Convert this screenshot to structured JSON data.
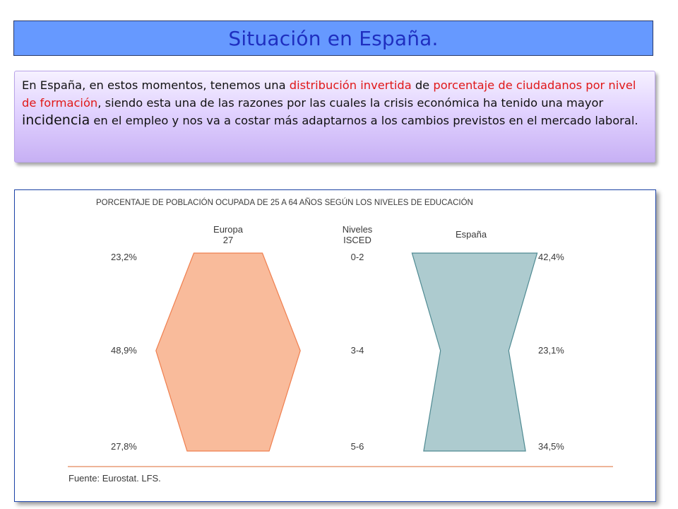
{
  "slide": {
    "title": "Situación en España.",
    "intro": {
      "t1": "En España, en estos momentos, tenemos una ",
      "t2": "distribución invertida",
      "t3": " de ",
      "t4": "porcentaje de ciudadanos por nivel de formación",
      "t5": ", siendo esta una de las razones por las cuales la crisis económica ha tenido una mayor ",
      "t6": "incidencia",
      "t7": " en el empleo  y nos va a costar más adaptarnos a los cambios previstos en el mercado laboral."
    }
  },
  "chart_data": {
    "type": "pyramid",
    "title": "PORCENTAJE DE POBLACIÓN OCUPADA DE 25 A 64 AÑOS SEGÚN LOS NIVELES DE EDUCACIÓN",
    "categories_header_line1": "Niveles",
    "categories_header_line2": "ISCED",
    "categories": [
      "0-2",
      "3-4",
      "5-6"
    ],
    "series": [
      {
        "name_line1": "Europa",
        "name_line2": "27",
        "values": [
          23.2,
          48.9,
          27.8
        ],
        "labels": [
          "23,2%",
          "48,9%",
          "27,8%"
        ],
        "fill": "#f9bb9b",
        "stroke": "#ef7f4f"
      },
      {
        "name_line1": "España",
        "name_line2": "",
        "values": [
          42.4,
          23.1,
          34.5
        ],
        "labels": [
          "42,4%",
          "23,1%",
          "34,5%"
        ],
        "fill": "#adcbcf",
        "stroke": "#4f8a92"
      }
    ],
    "source": "Fuente: Eurostat. LFS."
  }
}
